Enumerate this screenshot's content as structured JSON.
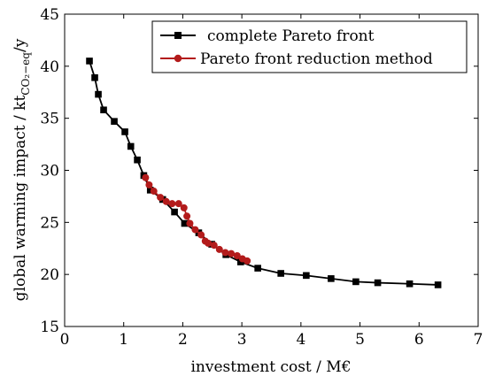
{
  "chart_data": {
    "type": "line",
    "xlabel": "investment cost / M€",
    "ylabel": "global warming impact / kt",
    "ylabel_subscript": "CO₂−eq",
    "ylabel_suffix": "/y",
    "xlim": [
      0,
      7
    ],
    "ylim": [
      15,
      45
    ],
    "xticks": [
      0,
      1,
      2,
      3,
      4,
      5,
      6,
      7
    ],
    "yticks": [
      15,
      20,
      25,
      30,
      35,
      40,
      45
    ],
    "legend_position": "top-right",
    "grid": false,
    "series": [
      {
        "name": "complete Pareto front",
        "color": "#000000",
        "marker": "square",
        "points": [
          [
            0.42,
            40.5
          ],
          [
            0.51,
            38.9
          ],
          [
            0.57,
            37.3
          ],
          [
            0.66,
            35.8
          ],
          [
            0.84,
            34.7
          ],
          [
            1.02,
            33.7
          ],
          [
            1.12,
            32.3
          ],
          [
            1.23,
            31.0
          ],
          [
            1.34,
            29.5
          ],
          [
            1.45,
            28.1
          ],
          [
            1.66,
            27.2
          ],
          [
            1.86,
            26.0
          ],
          [
            2.03,
            24.9
          ],
          [
            2.27,
            24.0
          ],
          [
            2.49,
            22.9
          ],
          [
            2.73,
            21.9
          ],
          [
            2.98,
            21.2
          ],
          [
            3.27,
            20.6
          ],
          [
            3.66,
            20.1
          ],
          [
            4.09,
            19.9
          ],
          [
            4.51,
            19.6
          ],
          [
            4.93,
            19.3
          ],
          [
            5.3,
            19.2
          ],
          [
            5.84,
            19.1
          ],
          [
            6.32,
            19.0
          ]
        ]
      },
      {
        "name": "Pareto front reduction method",
        "color": "#b31b1b",
        "marker": "circle",
        "points": [
          [
            1.37,
            29.3
          ],
          [
            1.43,
            28.6
          ],
          [
            1.51,
            28.0
          ],
          [
            1.62,
            27.4
          ],
          [
            1.72,
            27.0
          ],
          [
            1.82,
            26.8
          ],
          [
            1.93,
            26.8
          ],
          [
            2.02,
            26.4
          ],
          [
            2.07,
            25.6
          ],
          [
            2.12,
            24.9
          ],
          [
            2.21,
            24.3
          ],
          [
            2.31,
            23.8
          ],
          [
            2.38,
            23.2
          ],
          [
            2.43,
            23.0
          ],
          [
            2.53,
            22.8
          ],
          [
            2.62,
            22.4
          ],
          [
            2.72,
            22.1
          ],
          [
            2.82,
            22.0
          ],
          [
            2.92,
            21.8
          ],
          [
            3.01,
            21.5
          ],
          [
            3.09,
            21.3
          ]
        ]
      }
    ]
  }
}
